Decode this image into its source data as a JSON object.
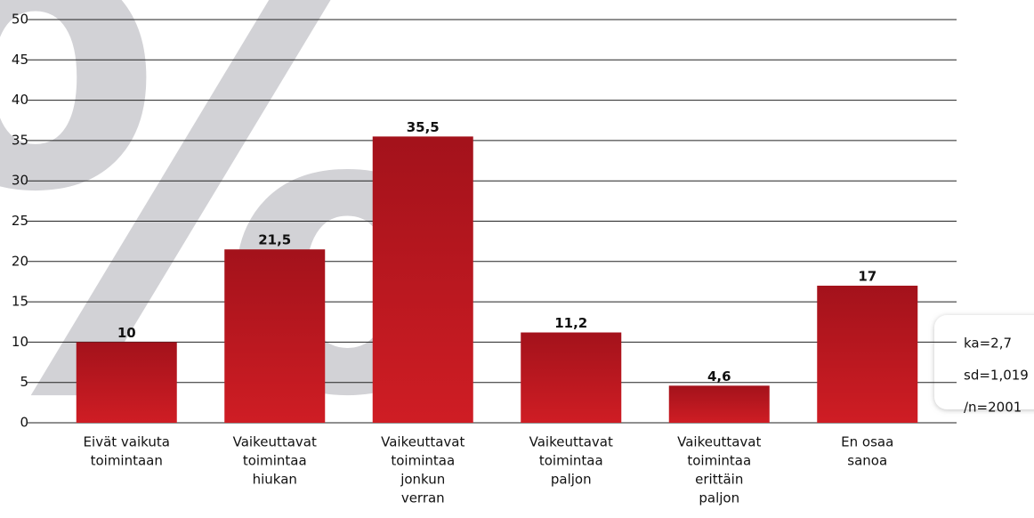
{
  "chart_data": {
    "type": "bar",
    "watermark": "%",
    "categories": [
      [
        "Eivät vaikuta",
        "toimintaan"
      ],
      [
        "Vaikeuttavat",
        "toimintaa",
        "hiukan"
      ],
      [
        "Vaikeuttavat",
        "toimintaa",
        "jonkun",
        "verran"
      ],
      [
        "Vaikeuttavat",
        "toimintaa",
        "paljon"
      ],
      [
        "Vaikeuttavat",
        "toimintaa",
        "erittäin",
        "paljon"
      ],
      [
        "En osaa",
        "sanoa"
      ]
    ],
    "values": [
      10,
      21.5,
      35.5,
      11.2,
      4.6,
      17
    ],
    "value_labels": [
      "10",
      "21,5",
      "35,5",
      "11,2",
      "4,6",
      "17"
    ],
    "color": "#b5161e",
    "ylim": [
      0,
      50
    ],
    "yticks": [
      0,
      5,
      10,
      15,
      20,
      25,
      30,
      35,
      40,
      45,
      50
    ],
    "grid": true,
    "annotations": [
      "ka=2,7",
      "sd=1,019",
      "/n=2001"
    ]
  }
}
